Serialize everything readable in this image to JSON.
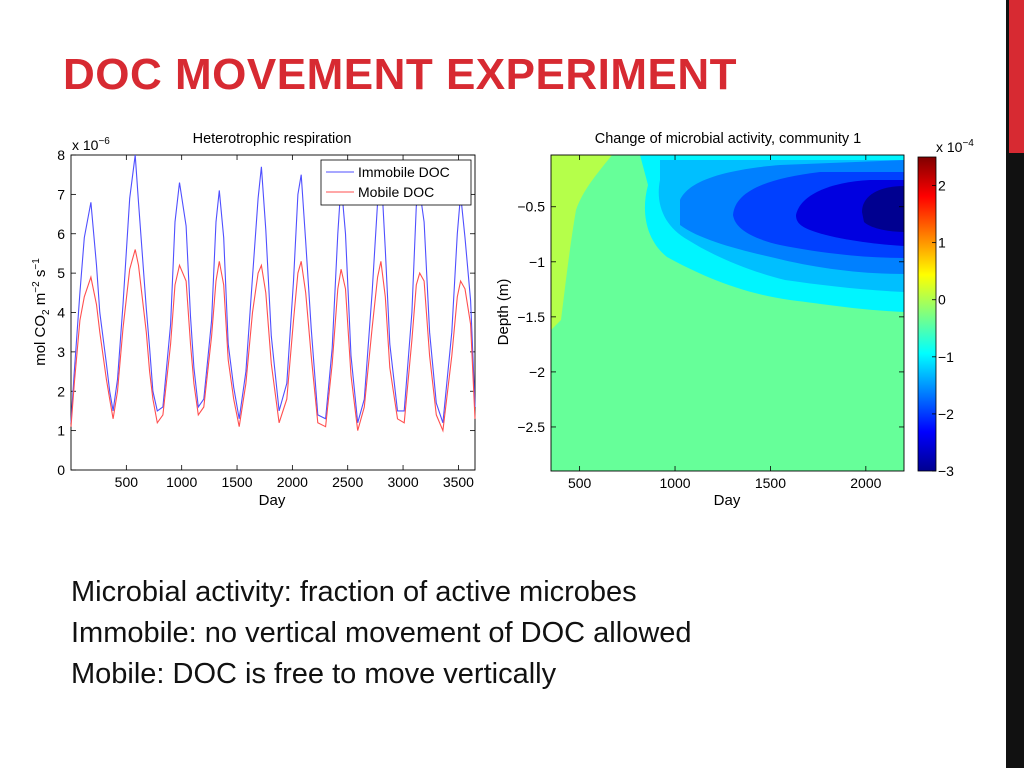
{
  "slide": {
    "title": "DOC MOVEMENT EXPERIMENT",
    "notes": [
      "Microbial activity: fraction of active microbes",
      "Immobile: no vertical movement of DOC allowed",
      "Mobile: DOC is free to move vertically"
    ]
  },
  "colors": {
    "title": "#d72a32",
    "immobile": "#4f4fff",
    "mobile": "#ff4f4f"
  },
  "chart_data": [
    {
      "type": "line",
      "title": "Heterotrophic respiration",
      "xlabel": "Day",
      "ylabel": "mol CO2 m-2 s-1",
      "multiplier": "x 10^-6",
      "xlim": [
        0,
        3650
      ],
      "ylim": [
        0,
        8
      ],
      "xticks": [
        500,
        1000,
        1500,
        2000,
        2500,
        3000,
        3500
      ],
      "yticks": [
        0,
        1,
        2,
        3,
        4,
        5,
        6,
        7,
        8
      ],
      "legend_position": "top-right",
      "x": [
        0,
        30,
        80,
        120,
        180,
        230,
        260,
        320,
        350,
        380,
        420,
        470,
        530,
        580,
        610,
        680,
        710,
        740,
        780,
        830,
        900,
        940,
        980,
        1040,
        1080,
        1110,
        1150,
        1200,
        1270,
        1310,
        1340,
        1380,
        1420,
        1470,
        1520,
        1580,
        1640,
        1690,
        1720,
        1760,
        1810,
        1880,
        1950,
        2010,
        2050,
        2080,
        2120,
        2170,
        2230,
        2300,
        2360,
        2410,
        2440,
        2480,
        2530,
        2590,
        2650,
        2720,
        2770,
        2800,
        2840,
        2880,
        2950,
        3010,
        3080,
        3120,
        3150,
        3190,
        3240,
        3300,
        3360,
        3440,
        3490,
        3520,
        3560,
        3610,
        3650
      ],
      "series": [
        {
          "name": "Immobile DOC",
          "values": [
            1.2,
            2.5,
            4.5,
            5.9,
            6.8,
            5.2,
            4.0,
            2.7,
            2.0,
            1.5,
            2.3,
            4.2,
            6.9,
            8.0,
            6.8,
            4.1,
            3.1,
            2.0,
            1.5,
            1.6,
            3.7,
            6.3,
            7.3,
            6.2,
            3.9,
            2.6,
            1.6,
            1.8,
            3.8,
            6.3,
            7.1,
            5.9,
            3.2,
            2.1,
            1.3,
            2.5,
            4.9,
            6.9,
            7.7,
            6.1,
            3.4,
            1.5,
            2.2,
            4.8,
            7.0,
            7.5,
            5.8,
            3.6,
            1.4,
            1.3,
            3.1,
            6.0,
            7.3,
            6.0,
            2.9,
            1.2,
            1.8,
            4.5,
            6.8,
            7.7,
            5.6,
            3.2,
            1.5,
            1.5,
            4.0,
            6.7,
            7.1,
            6.3,
            3.5,
            1.7,
            1.2,
            3.5,
            6.0,
            7.0,
            5.9,
            4.3,
            1.6
          ]
        },
        {
          "name": "Mobile DOC",
          "values": [
            1.1,
            2.2,
            3.8,
            4.4,
            4.9,
            4.2,
            3.5,
            2.3,
            1.8,
            1.3,
            2.0,
            3.6,
            5.1,
            5.6,
            5.2,
            3.5,
            2.5,
            1.8,
            1.2,
            1.4,
            3.2,
            4.7,
            5.2,
            4.8,
            3.2,
            2.2,
            1.4,
            1.6,
            3.4,
            4.8,
            5.3,
            4.7,
            2.8,
            1.8,
            1.1,
            2.2,
            4.0,
            5.0,
            5.2,
            4.5,
            2.7,
            1.2,
            1.8,
            3.8,
            5.0,
            5.3,
            4.5,
            2.9,
            1.2,
            1.1,
            2.7,
            4.6,
            5.1,
            4.6,
            2.4,
            1.0,
            1.6,
            3.6,
            4.9,
            5.3,
            4.4,
            2.6,
            1.3,
            1.2,
            3.3,
            4.7,
            5.0,
            4.8,
            2.9,
            1.4,
            1.0,
            2.9,
            4.4,
            4.8,
            4.6,
            3.7,
            1.3
          ]
        }
      ]
    },
    {
      "type": "heatmap",
      "title": "Change of microbial activity, community 1",
      "xlabel": "Day",
      "ylabel": "Depth (m)",
      "colorbar_multiplier": "x 10^-4",
      "xlim": [
        350,
        2200
      ],
      "ylim": [
        -2.9,
        -0.03
      ],
      "xticks": [
        500,
        1000,
        1500,
        2000
      ],
      "yticks": [
        -0.5,
        -1,
        -1.5,
        -2,
        -2.5
      ],
      "clim": [
        -3,
        2.5
      ],
      "cticks": [
        2,
        1,
        0,
        -1,
        -2,
        -3
      ],
      "colormap": "jet"
    }
  ]
}
